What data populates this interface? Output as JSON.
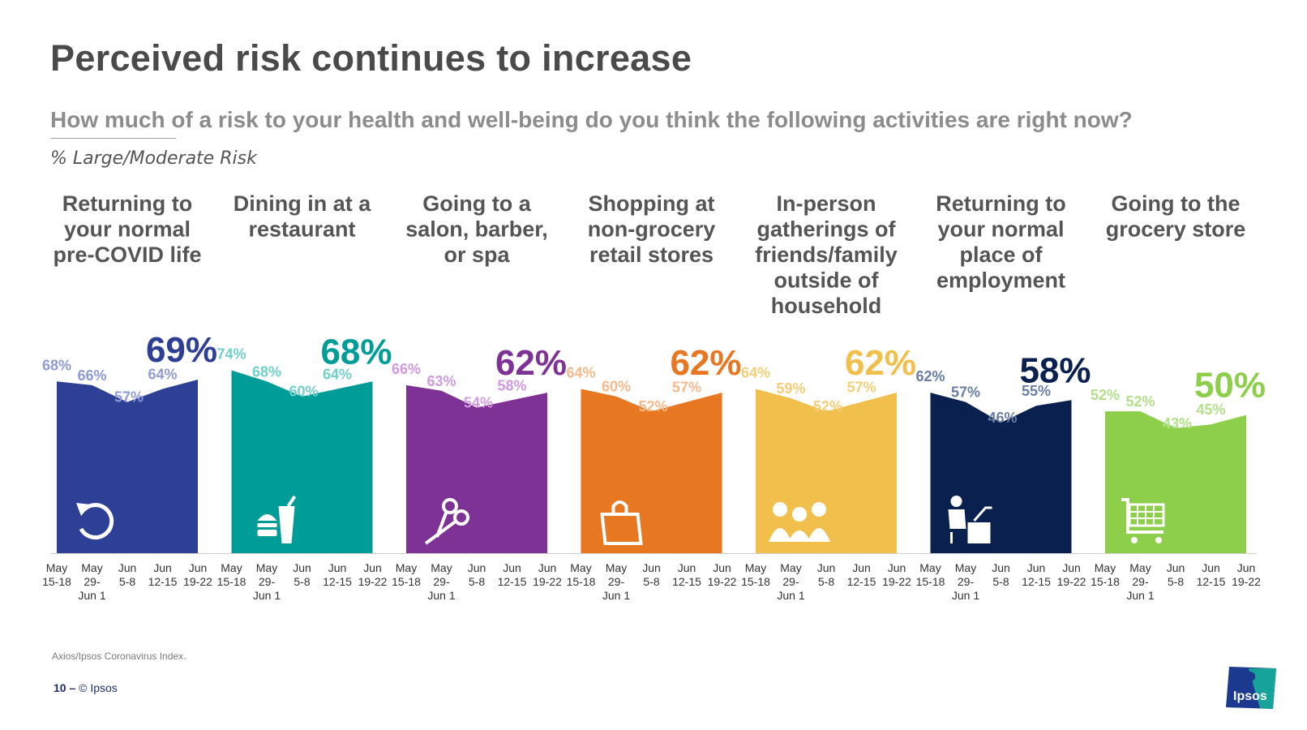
{
  "title": "Perceived risk continues to increase",
  "question": "How much of a risk to your health and well-being do you think the following activities are right now?",
  "metric_label": "% Large/Moderate Risk",
  "source": "Axios/Ipsos Coronavirus Index.",
  "footer": {
    "page_number": "10 –",
    "copyright": "© Ipsos"
  },
  "logo_text": "Ipsos",
  "chart_data": {
    "type": "area",
    "ylim": [
      0,
      100
    ],
    "x_categories": [
      [
        "May",
        "15-18"
      ],
      [
        "May",
        "29-",
        "Jun 1"
      ],
      [
        "Jun",
        "5-8"
      ],
      [
        "Jun",
        "12-15"
      ],
      [
        "Jun",
        "19-22"
      ]
    ],
    "panels": [
      {
        "name": [
          "Returning to",
          "your normal",
          "pre-COVID life"
        ],
        "values": [
          68,
          66,
          57,
          64,
          69
        ],
        "color": "#2e3f96",
        "label_color": "#8f9bd6",
        "icon": "restart-icon"
      },
      {
        "name": [
          "Dining in at a",
          "restaurant"
        ],
        "values": [
          74,
          68,
          60,
          64,
          68
        ],
        "color": "#009d98",
        "label_color": "#71cfcb",
        "icon": "burger-drink-icon"
      },
      {
        "name": [
          "Going to a",
          "salon, barber,",
          "or spa"
        ],
        "values": [
          66,
          63,
          54,
          58,
          62
        ],
        "color": "#7f3296",
        "label_color": "#d19ae0",
        "icon": "scissors-icon"
      },
      {
        "name": [
          "Shopping at",
          "non-grocery",
          "retail stores"
        ],
        "values": [
          64,
          60,
          52,
          57,
          62
        ],
        "color": "#e87722",
        "label_color": "#f6b98b",
        "icon": "shopping-bag-icon"
      },
      {
        "name": [
          "In-person",
          "gatherings of",
          "friends/family",
          "outside of",
          "household"
        ],
        "values": [
          64,
          59,
          52,
          57,
          62
        ],
        "color": "#f0bf4c",
        "label_color": "#f5ce76",
        "icon": "group-icon"
      },
      {
        "name": [
          "Returning to",
          "your normal",
          "place of",
          "employment"
        ],
        "values": [
          62,
          57,
          46,
          55,
          58
        ],
        "color": "#0a2150",
        "label_color": "#6b7ea6",
        "icon": "desk-worker-icon"
      },
      {
        "name": [
          "Going to the",
          "grocery store"
        ],
        "values": [
          52,
          52,
          43,
          45,
          50
        ],
        "color": "#8dcf4a",
        "label_color": "#b3e08a",
        "icon": "shopping-cart-icon"
      }
    ]
  }
}
